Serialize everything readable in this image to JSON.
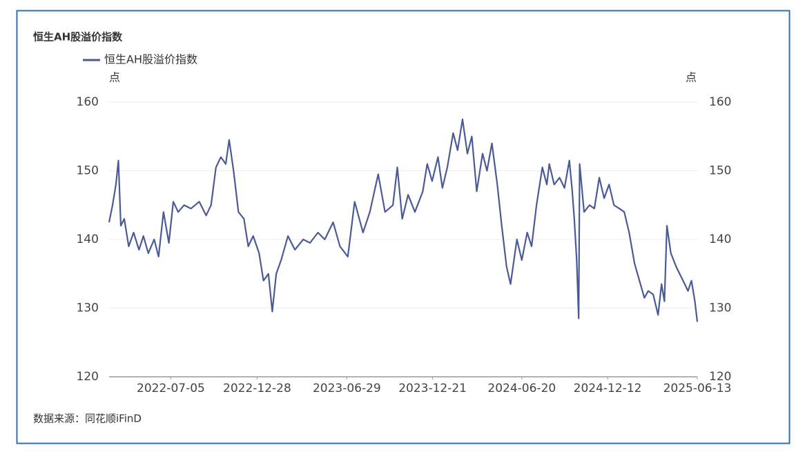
{
  "chart_data": {
    "type": "line",
    "title": "恒生AH股溢价指数",
    "y_label": "点",
    "y2_label": "点",
    "source": "数据来源：同花顺iFinD",
    "x": [
      "2022-03-01",
      "2022-03-08",
      "2022-03-15",
      "2022-03-20",
      "2022-03-25",
      "2022-04-01",
      "2022-04-10",
      "2022-04-20",
      "2022-05-01",
      "2022-05-10",
      "2022-05-20",
      "2022-06-01",
      "2022-06-10",
      "2022-06-20",
      "2022-07-01",
      "2022-07-10",
      "2022-07-20",
      "2022-08-01",
      "2022-08-15",
      "2022-09-01",
      "2022-09-15",
      "2022-09-25",
      "2022-10-05",
      "2022-10-15",
      "2022-10-25",
      "2022-11-01",
      "2022-11-10",
      "2022-11-20",
      "2022-12-01",
      "2022-12-10",
      "2022-12-20",
      "2023-01-01",
      "2023-01-10",
      "2023-01-20",
      "2023-01-28",
      "2023-02-05",
      "2023-02-15",
      "2023-03-01",
      "2023-03-15",
      "2023-04-01",
      "2023-04-15",
      "2023-05-01",
      "2023-05-15",
      "2023-06-01",
      "2023-06-15",
      "2023-07-01",
      "2023-07-15",
      "2023-08-01",
      "2023-08-15",
      "2023-09-01",
      "2023-09-15",
      "2023-10-01",
      "2023-10-10",
      "2023-10-20",
      "2023-11-01",
      "2023-11-15",
      "2023-12-01",
      "2023-12-10",
      "2023-12-20",
      "2024-01-01",
      "2024-01-10",
      "2024-01-20",
      "2024-02-01",
      "2024-02-10",
      "2024-02-20",
      "2024-03-01",
      "2024-03-10",
      "2024-03-20",
      "2024-04-01",
      "2024-04-10",
      "2024-04-20",
      "2024-05-01",
      "2024-05-10",
      "2024-05-20",
      "2024-05-28",
      "2024-06-10",
      "2024-06-20",
      "2024-07-01",
      "2024-07-10",
      "2024-07-20",
      "2024-08-01",
      "2024-08-10",
      "2024-08-15",
      "2024-08-25",
      "2024-09-05",
      "2024-09-15",
      "2024-09-25",
      "2024-10-01",
      "2024-10-05",
      "2024-10-10",
      "2024-10-14",
      "2024-10-16",
      "2024-10-25",
      "2024-11-05",
      "2024-11-15",
      "2024-11-25",
      "2024-12-05",
      "2024-12-15",
      "2024-12-25",
      "2025-01-05",
      "2025-01-15",
      "2025-01-25",
      "2025-02-05",
      "2025-02-15",
      "2025-02-25",
      "2025-03-05",
      "2025-03-15",
      "2025-03-25",
      "2025-04-01",
      "2025-04-07",
      "2025-04-12",
      "2025-04-20",
      "2025-05-01",
      "2025-05-15",
      "2025-05-25",
      "2025-06-01",
      "2025-06-08",
      "2025-06-13"
    ],
    "series": [
      {
        "name": "恒生AH股溢价指数",
        "color": "#4a5a96",
        "axis": "y",
        "values": [
          142.5,
          145,
          148,
          151.5,
          142,
          143,
          139,
          141,
          138.5,
          140.5,
          138,
          140,
          137.5,
          144,
          139.5,
          145.5,
          144,
          145,
          144.5,
          145.5,
          143.5,
          145,
          150.5,
          152,
          151,
          154.5,
          150,
          144,
          143,
          139,
          140.5,
          138,
          134,
          135,
          129.5,
          135,
          137,
          140.5,
          138.5,
          140,
          139.5,
          141,
          140,
          142.5,
          139,
          137.5,
          145.5,
          141,
          144,
          149.5,
          144,
          145,
          150.5,
          143,
          146.5,
          144,
          147,
          151,
          148.5,
          152,
          147.5,
          150.5,
          155.5,
          153,
          157.5,
          152.5,
          155,
          147,
          152.5,
          150,
          154,
          148,
          142,
          136,
          133.5,
          140,
          137,
          141,
          139,
          145,
          150.5,
          148,
          151,
          148,
          149,
          147.5,
          151.5,
          147,
          143,
          137,
          128.5,
          151,
          144,
          145,
          144.5,
          149,
          146,
          148,
          145,
          144.5,
          144,
          141,
          136.5,
          134,
          131.5,
          132.5,
          132,
          129,
          133.5,
          131,
          142,
          138,
          136,
          134,
          132.5,
          134,
          131,
          128
        ]
      }
    ],
    "xlim": [
      "2022-03-01",
      "2025-06-13"
    ],
    "xticks": [
      "2022-07-05",
      "2022-12-28",
      "2023-06-29",
      "2023-12-21",
      "2024-06-20",
      "2024-12-12",
      "2025-06-13"
    ],
    "ylim": [
      120,
      160
    ],
    "yticks": [
      120,
      130,
      140,
      150,
      160
    ],
    "y2lim": [
      120,
      160
    ],
    "y2ticks": [
      120,
      130,
      140,
      150,
      160
    ],
    "grid": true
  }
}
